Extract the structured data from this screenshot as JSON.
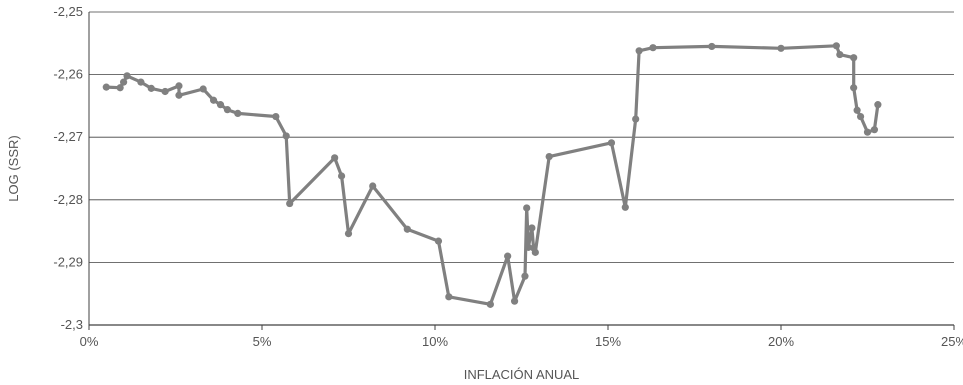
{
  "chart_data": {
    "type": "line",
    "title": "",
    "xlabel": "INFLACIÓN ANUAL",
    "ylabel": "LOG (SSR)",
    "xlim": [
      0,
      25
    ],
    "ylim": [
      -2.3,
      -2.25
    ],
    "x_ticks": [
      0,
      5,
      10,
      15,
      20,
      25
    ],
    "x_tick_labels": [
      "0%",
      "5%",
      "10%",
      "15%",
      "20%",
      "25%"
    ],
    "y_ticks": [
      -2.3,
      -2.29,
      -2.28,
      -2.27,
      -2.26,
      -2.25
    ],
    "y_tick_labels": [
      "-2,3",
      "-2,29",
      "-2,28",
      "-2,27",
      "-2,26",
      "-2,25"
    ],
    "grid": "horizontal",
    "colors": {
      "line": "#808080",
      "grid": "#404040",
      "axis": "#404040"
    },
    "series": [
      {
        "x": [
          0.5,
          0.9,
          1.0,
          1.1,
          1.5,
          1.8,
          2.2,
          2.6,
          2.6,
          3.3,
          3.6,
          3.8,
          4.0,
          4.3,
          5.4,
          5.7,
          5.8,
          7.1,
          7.3,
          7.5,
          8.2,
          9.2,
          10.1,
          10.4,
          11.6,
          12.1,
          12.3,
          12.6,
          12.65,
          12.7,
          12.8,
          12.85,
          12.9,
          13.3,
          15.1,
          15.5,
          15.8,
          15.9,
          16.3,
          18.0,
          20.0,
          21.6,
          21.7,
          22.1,
          22.1,
          22.2,
          22.3,
          22.5,
          22.7,
          22.8
        ],
        "y": [
          -2.262,
          -2.2621,
          -2.2612,
          -2.2602,
          -2.2612,
          -2.2622,
          -2.2627,
          -2.2618,
          -2.2633,
          -2.2623,
          -2.2641,
          -2.2648,
          -2.2656,
          -2.2662,
          -2.2667,
          -2.2698,
          -2.2806,
          -2.2733,
          -2.2762,
          -2.2854,
          -2.2778,
          -2.2847,
          -2.2866,
          -2.2955,
          -2.2967,
          -2.289,
          -2.2962,
          -2.2922,
          -2.2813,
          -2.2876,
          -2.2845,
          -2.2877,
          -2.2884,
          -2.2731,
          -2.2709,
          -2.2812,
          -2.2671,
          -2.2562,
          -2.2557,
          -2.2555,
          -2.2558,
          -2.2554,
          -2.2568,
          -2.2573,
          -2.2621,
          -2.2657,
          -2.2667,
          -2.2692,
          -2.2688,
          -2.2648
        ]
      }
    ]
  }
}
